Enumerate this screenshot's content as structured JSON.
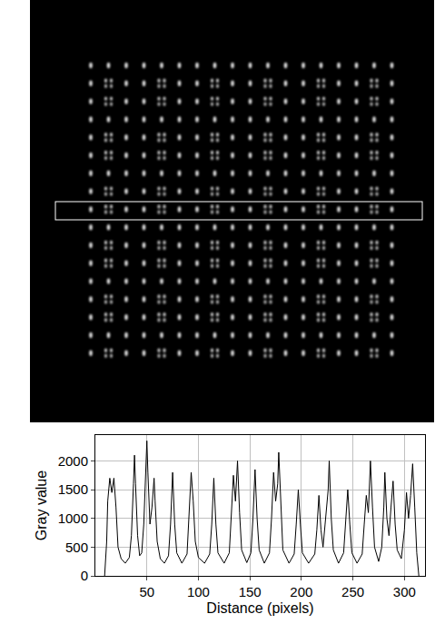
{
  "chart_data": {
    "type": "line",
    "x_label": "Distance (pixels)",
    "y_label": "Gray value",
    "color": "#000000",
    "grid": true,
    "xlim": [
      0,
      320
    ],
    "ylim": [
      0,
      2450
    ],
    "xticks": [
      50,
      100,
      150,
      200,
      250,
      300
    ],
    "yticks": [
      0,
      500,
      1000,
      1500,
      2000
    ],
    "x": [
      9,
      11,
      12,
      14,
      16,
      18,
      20,
      22,
      25,
      29,
      33,
      35,
      37,
      38,
      39,
      41,
      43,
      45,
      47,
      49,
      50,
      51,
      53,
      55,
      57,
      58,
      60,
      63,
      67,
      71,
      73,
      75,
      77,
      79,
      84,
      89,
      91,
      93,
      95,
      97,
      100,
      106,
      111,
      113,
      115,
      117,
      119,
      125,
      130,
      132,
      134,
      136,
      138,
      140,
      142,
      147,
      151,
      153,
      155,
      157,
      159,
      164,
      169,
      171,
      173,
      175,
      177,
      178,
      180,
      182,
      188,
      193,
      195,
      197,
      199,
      201,
      207,
      213,
      215,
      217,
      219,
      221,
      223,
      226,
      227,
      229,
      231,
      236,
      241,
      243,
      245,
      247,
      249,
      254,
      259,
      261,
      263,
      265,
      267,
      269,
      271,
      275,
      278,
      280,
      281,
      283,
      285,
      287,
      289,
      291,
      293,
      297,
      300,
      302,
      304,
      306,
      308,
      310,
      312,
      314
    ],
    "values": [
      0,
      600,
      1300,
      1700,
      1450,
      1700,
      1200,
      500,
      300,
      220,
      320,
      700,
      1600,
      2100,
      1600,
      700,
      350,
      400,
      900,
      1900,
      2350,
      1800,
      900,
      1200,
      1700,
      1300,
      600,
      300,
      220,
      350,
      900,
      1800,
      900,
      400,
      220,
      380,
      1000,
      1800,
      1300,
      600,
      320,
      220,
      380,
      900,
      1700,
      900,
      400,
      220,
      400,
      1100,
      1750,
      1300,
      2000,
      1100,
      450,
      230,
      400,
      1000,
      1850,
      1000,
      450,
      220,
      400,
      1000,
      1800,
      1300,
      1600,
      2150,
      1200,
      450,
      220,
      380,
      900,
      1500,
      900,
      400,
      220,
      380,
      800,
      1400,
      800,
      500,
      900,
      1500,
      2000,
      1000,
      450,
      220,
      400,
      900,
      1500,
      900,
      400,
      220,
      380,
      900,
      1400,
      1100,
      2000,
      1200,
      500,
      250,
      500,
      1200,
      1800,
      1000,
      700,
      1200,
      1650,
      900,
      450,
      300,
      800,
      1450,
      1000,
      1400,
      1950,
      1200,
      400,
      0
    ]
  }
}
